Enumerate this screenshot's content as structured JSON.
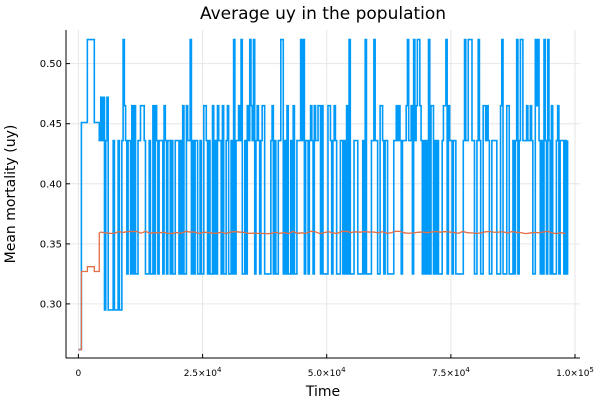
{
  "chart_data": {
    "type": "line",
    "title": "Average uy in the population",
    "xlabel": "Time",
    "ylabel": "Mean mortality (uy)",
    "xlim": [
      -2500,
      101000
    ],
    "ylim": [
      0.255,
      0.528
    ],
    "grid": true,
    "legend": "none",
    "x_ticks": [
      {
        "value": 0,
        "label": "0"
      },
      {
        "value": 25000,
        "label": "2.5×10",
        "exp": "4"
      },
      {
        "value": 50000,
        "label": "5.0×10",
        "exp": "4"
      },
      {
        "value": 75000,
        "label": "7.5×10",
        "exp": "4"
      },
      {
        "value": 100000,
        "label": "1.0×10",
        "exp": "5"
      }
    ],
    "y_ticks": [
      {
        "value": 0.3,
        "label": "0.30"
      },
      {
        "value": 0.35,
        "label": "0.35"
      },
      {
        "value": 0.4,
        "label": "0.40"
      },
      {
        "value": 0.45,
        "label": "0.45"
      },
      {
        "value": 0.5,
        "label": "0.50"
      }
    ],
    "series": [
      {
        "color": "#009af9",
        "start": {
          "x": [
            0,
            600,
            600,
            1800,
            1800,
            3200,
            3200,
            4200,
            4200
          ],
          "y": [
            0.262,
            0.262,
            0.451,
            0.451,
            0.52,
            0.52,
            0.451,
            0.451,
            0.436
          ]
        },
        "oscillation": {
          "x_start": 4500,
          "x_end": 98500,
          "step": 250,
          "levels": [
            0.295,
            0.325,
            0.436,
            0.465,
            0.472,
            0.52
          ]
        }
      },
      {
        "color": "#e26f46",
        "x": [
          0,
          600,
          600,
          1800,
          1800,
          3200,
          3200,
          4200,
          4200,
          98500
        ],
        "y": [
          0.262,
          0.262,
          0.327,
          0.327,
          0.331,
          0.331,
          0.327,
          0.327,
          0.359,
          0.36
        ]
      }
    ]
  }
}
